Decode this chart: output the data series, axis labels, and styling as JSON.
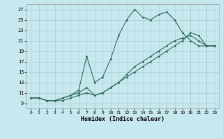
{
  "xlabel": "Humidex (Indice chaleur)",
  "background_color": "#c8e8f0",
  "grid_color": "#aacccc",
  "line_color": "#2e6b5e",
  "xlim": [
    -0.5,
    23.5
  ],
  "ylim": [
    8.0,
    28.0
  ],
  "xticks": [
    0,
    1,
    2,
    3,
    4,
    5,
    6,
    7,
    8,
    9,
    10,
    11,
    12,
    13,
    14,
    15,
    16,
    17,
    18,
    19,
    20,
    21,
    22,
    23
  ],
  "yticks": [
    9,
    11,
    13,
    15,
    17,
    19,
    21,
    23,
    25,
    27
  ],
  "curve1_x": [
    0,
    1,
    2,
    3,
    4,
    5,
    6,
    7,
    8,
    9,
    10,
    11,
    12,
    13,
    14,
    15,
    16,
    17,
    18,
    19,
    20,
    21,
    22,
    23
  ],
  "curve1_y": [
    10,
    10,
    9.5,
    9.5,
    9.5,
    10,
    10.5,
    11,
    10.5,
    11,
    12,
    13,
    14.5,
    16,
    17,
    18,
    19,
    20,
    21,
    21.5,
    22,
    21,
    20,
    20
  ],
  "curve2_x": [
    0,
    1,
    2,
    3,
    4,
    5,
    6,
    7,
    8,
    9,
    10,
    11,
    12,
    13,
    14,
    15,
    16,
    17,
    18,
    19,
    20,
    21,
    22,
    23
  ],
  "curve2_y": [
    10,
    10,
    9.5,
    9.5,
    10,
    10.5,
    11.5,
    18,
    13,
    14,
    17.5,
    22,
    25,
    27,
    25.5,
    25,
    26,
    26.5,
    25,
    22.5,
    21,
    20,
    20,
    20
  ],
  "curve3_x": [
    0,
    1,
    2,
    3,
    4,
    5,
    6,
    7,
    8,
    9,
    10,
    11,
    12,
    13,
    14,
    15,
    16,
    17,
    18,
    19,
    20,
    21,
    22,
    23
  ],
  "curve3_y": [
    10,
    10,
    9.5,
    9.5,
    10,
    10.5,
    11,
    12,
    10.5,
    11,
    12,
    13,
    14,
    15,
    16,
    17,
    18,
    19,
    20,
    21,
    22.5,
    22,
    20,
    20
  ]
}
